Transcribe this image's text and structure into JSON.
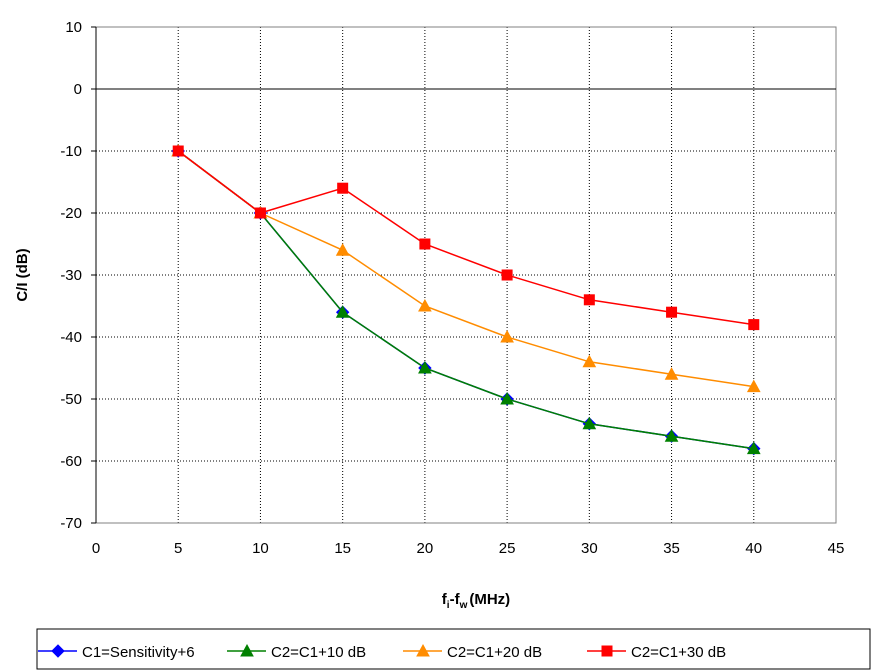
{
  "chart_data": {
    "type": "line",
    "title": "",
    "xlabel": {
      "base": "f",
      "sub1": "i",
      "mid": "-f",
      "sub2": "w",
      "unit": "(MHz)"
    },
    "ylabel": "C/I (dB)",
    "xlim": [
      0,
      45
    ],
    "ylim": [
      -70,
      10
    ],
    "xticks": [
      0,
      5,
      10,
      15,
      20,
      25,
      30,
      35,
      40,
      45
    ],
    "yticks": [
      10,
      0,
      -10,
      -20,
      -30,
      -40,
      -50,
      -60,
      -70
    ],
    "grid": true,
    "legend_position": "bottom",
    "x": [
      5,
      10,
      15,
      20,
      25,
      30,
      35,
      40
    ],
    "series": [
      {
        "name": "C1=Sensitivity+6",
        "color": "#0000ff",
        "marker": "diamond",
        "values": [
          -10,
          -20,
          -36,
          -45,
          -50,
          -54,
          -56,
          -58
        ]
      },
      {
        "name": "C2=C1+10 dB",
        "color": "#008000",
        "marker": "triangle",
        "values": [
          -10,
          -20,
          -36,
          -45,
          -50,
          -54,
          -56,
          -58
        ]
      },
      {
        "name": "C2=C1+20 dB",
        "color": "#ff8c00",
        "marker": "triangle",
        "values": [
          -10,
          -20,
          -26,
          -35,
          -40,
          -44,
          -46,
          -48
        ]
      },
      {
        "name": "C2=C1+30 dB",
        "color": "#ff0000",
        "marker": "square",
        "values": [
          -10,
          -20,
          -16,
          -25,
          -30,
          -34,
          -36,
          -38
        ]
      }
    ]
  }
}
